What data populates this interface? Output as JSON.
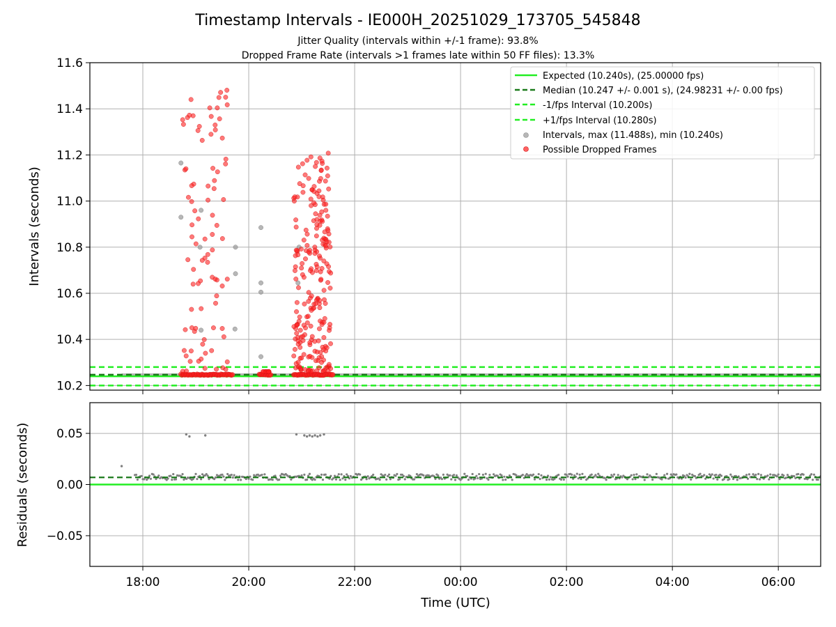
{
  "title": "Timestamp Intervals - IE000H_20251029_173705_545848",
  "subtitle1": "Jitter Quality (intervals within +/-1 frame): 93.8%",
  "subtitle2": "Dropped Frame Rate (intervals >1 frames late within 50 FF files): 13.3%",
  "chart_data": [
    {
      "type": "scatter",
      "name": "intervals",
      "ylabel": "Intervals (seconds)",
      "ylim": [
        10.18,
        11.6
      ],
      "yticks": [
        "10.2",
        "10.4",
        "10.6",
        "10.8",
        "11.0",
        "11.2",
        "11.4",
        "11.6"
      ],
      "ytick_values": [
        10.2,
        10.4,
        10.6,
        10.8,
        11.0,
        11.2,
        11.4,
        11.6
      ],
      "xlim_hours": [
        17.0,
        30.8
      ],
      "grid": true,
      "legend_position": "top-right",
      "reference_lines": [
        {
          "label": "Expected (10.240s), (25.00000 fps)",
          "y": 10.24,
          "color": "#22ee22",
          "style": "solid"
        },
        {
          "label": "Median (10.247 +/- 0.001 s), (24.98231 +/- 0.00 fps)",
          "y": 10.247,
          "color": "#1a7a1a",
          "style": "dashed"
        },
        {
          "label": "-1/fps Interval (10.200s)",
          "y": 10.2,
          "color": "#22ee22",
          "style": "dashed"
        },
        {
          "label": "+1/fps Interval (10.280s)",
          "y": 10.28,
          "color": "#22ee22",
          "style": "dashed"
        }
      ],
      "scatter_legend": [
        {
          "label": "Intervals, max (11.488s), min (10.240s)",
          "color": "#999999"
        },
        {
          "label": "Possible Dropped Frames",
          "color": "#ff2020"
        }
      ],
      "baseline_spans_hours": [
        [
          17.6,
          30.8
        ]
      ],
      "dropped_clusters": [
        {
          "start": 18.75,
          "end": 19.6,
          "min": 10.26,
          "max": 11.49,
          "n": 90
        },
        {
          "start": 20.2,
          "end": 20.4,
          "min": 10.26,
          "max": 10.26,
          "n": 12
        },
        {
          "start": 20.85,
          "end": 21.55,
          "min": 10.26,
          "max": 11.21,
          "n": 230
        }
      ],
      "dropped_cores": [
        {
          "start": 18.72,
          "end": 19.7,
          "y": 10.247
        },
        {
          "start": 20.2,
          "end": 20.42,
          "y": 10.247
        },
        {
          "start": 20.85,
          "end": 21.6,
          "y": 10.247
        }
      ],
      "gray_points": [
        {
          "t": 18.72,
          "v": 11.165
        },
        {
          "t": 18.72,
          "v": 10.93
        },
        {
          "t": 19.1,
          "v": 10.96
        },
        {
          "t": 19.08,
          "v": 10.8
        },
        {
          "t": 19.1,
          "v": 10.44
        },
        {
          "t": 19.75,
          "v": 10.8
        },
        {
          "t": 19.75,
          "v": 10.685
        },
        {
          "t": 19.74,
          "v": 10.445
        },
        {
          "t": 20.23,
          "v": 10.885
        },
        {
          "t": 20.23,
          "v": 10.645
        },
        {
          "t": 20.23,
          "v": 10.605
        },
        {
          "t": 20.23,
          "v": 10.325
        },
        {
          "t": 20.95,
          "v": 10.8
        },
        {
          "t": 20.93,
          "v": 10.645
        }
      ]
    },
    {
      "type": "scatter",
      "name": "residuals",
      "ylabel": "Residuals (seconds)",
      "xlabel": "Time (UTC)",
      "ylim": [
        -0.08,
        0.08
      ],
      "yticks": [
        "0.05",
        "0.00",
        "−0.05"
      ],
      "ytick_values": [
        0.05,
        0.0,
        -0.05
      ],
      "xticks": [
        "18:00",
        "20:00",
        "22:00",
        "00:00",
        "02:00",
        "04:00",
        "06:00"
      ],
      "xtick_hours": [
        18,
        20,
        22,
        24,
        26,
        28,
        30
      ],
      "grid": true,
      "expected_line": 0.0,
      "median_line": 0.007,
      "baseline_span_hours": [
        17.85,
        30.8
      ],
      "baseline_center": 0.0075,
      "outliers": [
        {
          "t": 17.6,
          "v": 0.018
        },
        {
          "t": 18.82,
          "v": 0.049
        },
        {
          "t": 18.88,
          "v": 0.047
        },
        {
          "t": 19.18,
          "v": 0.048
        },
        {
          "t": 20.9,
          "v": 0.049
        },
        {
          "t": 21.05,
          "v": 0.048
        },
        {
          "t": 21.1,
          "v": 0.047
        },
        {
          "t": 21.15,
          "v": 0.048
        },
        {
          "t": 21.2,
          "v": 0.047
        },
        {
          "t": 21.25,
          "v": 0.048
        },
        {
          "t": 21.3,
          "v": 0.047
        },
        {
          "t": 21.35,
          "v": 0.048
        },
        {
          "t": 21.42,
          "v": 0.049
        }
      ]
    }
  ],
  "colors": {
    "expected": "#22ee22",
    "median": "#1a7a1a",
    "interval": "#999999",
    "dropped": "#ff2020",
    "residual": "#808080",
    "grid": "#b0b0b0"
  }
}
